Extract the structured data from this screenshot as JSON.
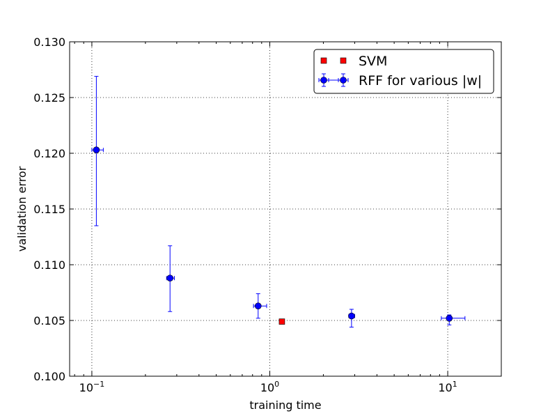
{
  "chart_data": {
    "type": "scatter",
    "xlabel": "training time",
    "ylabel": "validation error",
    "xscale": "log",
    "xlim": [
      0.075,
      20
    ],
    "ylim": [
      0.1,
      0.13
    ],
    "grid": true,
    "legend_position": "top-right",
    "x_ticks": [
      {
        "value": 0.1,
        "base": "10",
        "exp": "−1"
      },
      {
        "value": 1,
        "base": "10",
        "exp": "0"
      },
      {
        "value": 10,
        "base": "10",
        "exp": "1"
      }
    ],
    "y_ticks": [
      {
        "value": 0.1,
        "label": "0.100"
      },
      {
        "value": 0.105,
        "label": "0.105"
      },
      {
        "value": 0.11,
        "label": "0.110"
      },
      {
        "value": 0.115,
        "label": "0.115"
      },
      {
        "value": 0.12,
        "label": "0.120"
      },
      {
        "value": 0.125,
        "label": "0.125"
      },
      {
        "value": 0.13,
        "label": "0.130"
      }
    ],
    "series": [
      {
        "name": "SVM",
        "marker": "square",
        "color": "#ff0000",
        "points": [
          {
            "x": 1.17,
            "y": 0.1049
          }
        ]
      },
      {
        "name": "RFF for various |w|",
        "marker": "circle",
        "color": "#0000ff",
        "points": [
          {
            "x": 0.106,
            "y": 0.1203,
            "xerr": [
              0.006,
              0.01
            ],
            "yerr": [
              0.0068,
              0.0066
            ]
          },
          {
            "x": 0.275,
            "y": 0.1088,
            "xerr": [
              0.012,
              0.016
            ],
            "yerr": [
              0.003,
              0.0029
            ]
          },
          {
            "x": 0.86,
            "y": 0.1063,
            "xerr": [
              0.05,
              0.1
            ],
            "yerr": [
              0.0011,
              0.0011
            ]
          },
          {
            "x": 2.88,
            "y": 0.1054,
            "xerr": [
              0.1,
              0.12
            ],
            "yerr": [
              0.001,
              0.0006
            ]
          },
          {
            "x": 10.2,
            "y": 0.1052,
            "xerr": [
              1.0,
              2.3
            ],
            "yerr": [
              0.0006,
              0.0003
            ]
          }
        ]
      }
    ]
  }
}
